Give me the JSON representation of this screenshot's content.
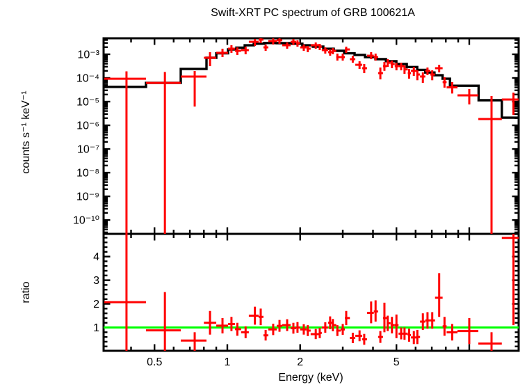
{
  "title": "Swift-XRT PC spectrum of GRB 100621A",
  "chart_data": {
    "type": "scatter",
    "xlabel": "Energy (keV)",
    "xscale": "log",
    "xlim": [
      0.308,
      16.0
    ],
    "xticks_labeled": [
      [
        0.5,
        "0.5"
      ],
      [
        1,
        "1"
      ],
      [
        2,
        "2"
      ],
      [
        5,
        "5"
      ]
    ],
    "xticks_major": [
      0.5,
      1,
      2,
      5,
      10
    ],
    "colors": {
      "data": "#ff0000",
      "model": "#000000",
      "reference": "#00ff00",
      "frame": "#000000",
      "background": "#ffffff"
    },
    "panels": [
      {
        "name": "spectrum",
        "ylabel": "counts s⁻¹ keV⁻¹",
        "yscale": "log",
        "ylim": [
          2.6e-11,
          0.00474
        ],
        "yticks": [
          [
            0.001,
            "10⁻³"
          ],
          [
            0.0001,
            "10⁻⁴"
          ],
          [
            1e-05,
            "10⁻⁵"
          ],
          [
            1e-06,
            "10⁻⁶"
          ],
          [
            1e-07,
            "10⁻⁷"
          ],
          [
            1e-08,
            "10⁻⁸"
          ],
          [
            1e-09,
            "10⁻⁹"
          ],
          [
            1e-10,
            "10⁻¹⁰"
          ]
        ],
        "legend": "red crosses: observed count rate with bin width and 1-sigma errors; black histogram: folded model",
        "data_points": [
          [
            0.383,
            0.31,
            0.461,
            9.3e-05,
            1e-11,
            0.00019
          ],
          [
            0.552,
            0.461,
            0.642,
            6.2e-05,
            1e-11,
            0.00018
          ],
          [
            0.733,
            0.642,
            0.82,
            0.000115,
            6.2e-06,
            0.000197
          ],
          [
            0.848,
            0.8,
            0.9,
            0.00071,
            0.000315,
            0.00123
          ],
          [
            0.955,
            0.9,
            1.007,
            0.00115,
            0.00076,
            0.00172
          ],
          [
            1.04,
            1.007,
            1.075,
            0.00172,
            0.00115,
            0.00241
          ],
          [
            1.1,
            1.075,
            1.14,
            0.0014,
            0.000935,
            0.00196
          ],
          [
            1.19,
            1.14,
            1.227,
            0.0015,
            0.001,
            0.0021
          ],
          [
            1.3,
            1.227,
            1.347,
            0.00337,
            0.00225,
            0.0044
          ],
          [
            1.374,
            1.347,
            1.41,
            0.00415,
            0.00295,
            0.0054
          ],
          [
            1.44,
            1.41,
            1.477,
            0.00196,
            0.0014,
            0.00258
          ],
          [
            1.547,
            1.477,
            1.6,
            0.00362,
            0.00258,
            0.0047
          ],
          [
            1.643,
            1.6,
            1.687,
            0.0039,
            0.00276,
            0.005
          ],
          [
            1.767,
            1.687,
            1.826,
            0.00241,
            0.00172,
            0.00315
          ],
          [
            1.875,
            1.826,
            1.925,
            0.00337,
            0.00241,
            0.0044
          ],
          [
            1.95,
            1.925,
            2.0,
            0.00295,
            0.0021,
            0.0039
          ],
          [
            2.07,
            2.0,
            2.125,
            0.00196,
            0.0014,
            0.00258
          ],
          [
            2.15,
            2.125,
            2.21,
            0.00172,
            0.00123,
            0.00225
          ],
          [
            2.32,
            2.21,
            2.4,
            0.00241,
            0.00172,
            0.00315
          ],
          [
            2.41,
            2.4,
            2.457,
            0.0021,
            0.0015,
            0.00276
          ],
          [
            2.54,
            2.457,
            2.61,
            0.0015,
            0.00107,
            0.00196
          ],
          [
            2.66,
            2.61,
            2.714,
            0.00123,
            0.00087,
            0.0016
          ],
          [
            2.73,
            2.714,
            2.82,
            0.0014,
            0.001,
            0.00184
          ],
          [
            2.85,
            2.82,
            2.94,
            0.00076,
            0.00054,
            0.00107
          ],
          [
            3.0,
            2.94,
            3.06,
            0.00076,
            0.00054,
            0.00107
          ],
          [
            3.1,
            3.06,
            3.21,
            0.0016,
            0.00115,
            0.0021
          ],
          [
            3.3,
            3.21,
            3.38,
            0.00062,
            0.00044,
            0.00087
          ],
          [
            3.52,
            3.38,
            3.61,
            0.00036,
            0.00024,
            0.000506
          ],
          [
            3.68,
            3.61,
            3.78,
            0.000258,
            0.00016,
            0.000387
          ],
          [
            3.93,
            3.78,
            4.03,
            0.00087,
            0.00062,
            0.00123
          ],
          [
            4.1,
            4.03,
            4.2,
            0.00076,
            0.00054,
            0.00107
          ],
          [
            4.29,
            4.2,
            4.4,
            0.00016,
            8.7e-05,
            0.000276
          ],
          [
            4.46,
            4.4,
            4.57,
            0.000315,
            0.0002,
            0.000473
          ],
          [
            4.6,
            4.57,
            4.73,
            0.00044,
            0.000295,
            0.00062
          ],
          [
            4.79,
            4.73,
            4.92,
            0.000387,
            0.000258,
            0.00054
          ],
          [
            5.0,
            4.92,
            5.1,
            0.000315,
            0.00021,
            0.00044
          ],
          [
            5.23,
            5.1,
            5.37,
            0.000315,
            0.00021,
            0.00044
          ],
          [
            5.4,
            5.37,
            5.57,
            0.00023,
            0.00015,
            0.000338
          ],
          [
            5.64,
            5.57,
            5.74,
            0.00016,
            9.35e-05,
            0.00024
          ],
          [
            5.9,
            5.74,
            6.07,
            0.0002,
            0.000122,
            0.000295
          ],
          [
            6.1,
            6.07,
            6.26,
            0.00014,
            8e-05,
            0.00021
          ],
          [
            6.43,
            6.26,
            6.58,
            0.000115,
            6.2e-05,
            0.000172
          ],
          [
            6.72,
            6.58,
            6.9,
            0.0002,
            0.000131,
            0.000276
          ],
          [
            7.03,
            6.9,
            7.22,
            0.00014,
            8e-05,
            0.00021
          ],
          [
            7.51,
            7.22,
            7.76,
            0.000258,
            0.000172,
            0.00036
          ],
          [
            7.9,
            7.76,
            8.06,
            6.66e-05,
            3.9e-05,
            0.000107
          ],
          [
            8.5,
            8.06,
            8.94,
            4e-05,
            2.2e-05,
            6.66e-05
          ],
          [
            10.0,
            8.94,
            10.9,
            1.84e-05,
            7.6e-06,
            3.4e-05
          ],
          [
            12.36,
            10.9,
            13.63,
            1.84e-06,
            1e-11,
            1.72e-05
          ],
          [
            15.23,
            13.63,
            16.5,
            1.23e-05,
            2.76e-06,
            2.4e-05
          ]
        ],
        "model": {
          "edges": [
            0.308,
            0.461,
            0.642,
            0.82,
            0.9,
            1.007,
            1.09,
            1.18,
            1.286,
            1.42,
            1.6,
            1.85,
            2.043,
            2.257,
            2.492,
            2.752,
            3.04,
            3.357,
            3.708,
            4.095,
            4.523,
            4.995,
            5.517,
            6.093,
            6.578,
            7.178,
            7.756,
            8.32,
            10.93,
            13.63,
            16.1
          ],
          "rates": [
            4.2e-05,
            6.2e-05,
            0.00024,
            0.00071,
            0.0011,
            0.0016,
            0.0019,
            0.0024,
            0.0028,
            0.003,
            0.00295,
            0.0028,
            0.0024,
            0.0021,
            0.0017,
            0.0014,
            0.0011,
            0.00094,
            0.00076,
            0.00062,
            0.00051,
            0.00039,
            0.00029,
            0.00022,
            0.00017,
            0.00013,
            9.3e-05,
            4.7e-05,
            1.15e-05,
            2.1e-06
          ]
        }
      },
      {
        "name": "ratio",
        "ylabel": "ratio",
        "yscale": "linear",
        "ylim": [
          0.015,
          4.96
        ],
        "yticks": [
          [
            1,
            "1"
          ],
          [
            2,
            "2"
          ],
          [
            3,
            "3"
          ],
          [
            4,
            "4"
          ]
        ],
        "ytick_minor_step": 0.2,
        "reference_line": {
          "value": 1,
          "color": "#00ff00"
        },
        "data_points": [
          [
            0.383,
            0.31,
            0.461,
            2.07,
            -1,
            6
          ],
          [
            0.552,
            0.461,
            0.642,
            0.88,
            -1,
            2.5
          ],
          [
            0.733,
            0.642,
            0.82,
            0.45,
            -1,
            0.8
          ],
          [
            0.848,
            0.8,
            0.9,
            1.2,
            0.7,
            1.7
          ],
          [
            0.955,
            0.9,
            1.007,
            1.08,
            0.75,
            1.4
          ],
          [
            1.04,
            1.007,
            1.075,
            1.15,
            0.85,
            1.45
          ],
          [
            1.1,
            1.075,
            1.14,
            0.93,
            0.65,
            1.2
          ],
          [
            1.19,
            1.14,
            1.227,
            0.8,
            0.55,
            1.05
          ],
          [
            1.3,
            1.227,
            1.347,
            1.5,
            1.12,
            1.88
          ],
          [
            1.374,
            1.347,
            1.41,
            1.45,
            1.1,
            1.8
          ],
          [
            1.44,
            1.41,
            1.477,
            0.67,
            0.45,
            0.9
          ],
          [
            1.547,
            1.477,
            1.6,
            0.92,
            0.68,
            1.16
          ],
          [
            1.643,
            1.6,
            1.687,
            1.07,
            0.82,
            1.32
          ],
          [
            1.767,
            1.687,
            1.826,
            1.1,
            0.85,
            1.35
          ],
          [
            1.875,
            1.826,
            1.925,
            0.97,
            0.74,
            1.2
          ],
          [
            1.95,
            1.925,
            2.0,
            1.0,
            0.78,
            1.23
          ],
          [
            2.07,
            2.0,
            2.125,
            0.92,
            0.7,
            1.14
          ],
          [
            2.15,
            2.125,
            2.21,
            0.87,
            0.64,
            1.1
          ],
          [
            2.32,
            2.21,
            2.4,
            0.72,
            0.51,
            0.94
          ],
          [
            2.41,
            2.4,
            2.457,
            0.77,
            0.55,
            0.99
          ],
          [
            2.54,
            2.457,
            2.61,
            1.0,
            0.78,
            1.22
          ],
          [
            2.66,
            2.61,
            2.714,
            1.2,
            0.93,
            1.47
          ],
          [
            2.73,
            2.714,
            2.82,
            1.1,
            0.84,
            1.36
          ],
          [
            2.85,
            2.82,
            2.94,
            0.87,
            0.64,
            1.1
          ],
          [
            3.0,
            2.94,
            3.06,
            0.92,
            0.69,
            1.15
          ],
          [
            3.1,
            3.06,
            3.21,
            1.4,
            1.1,
            1.7
          ],
          [
            3.3,
            3.21,
            3.38,
            0.56,
            0.34,
            0.78
          ],
          [
            3.52,
            3.38,
            3.61,
            0.65,
            0.42,
            0.88
          ],
          [
            3.68,
            3.61,
            3.78,
            0.5,
            0.27,
            0.73
          ],
          [
            3.93,
            3.78,
            4.03,
            1.62,
            1.18,
            2.1
          ],
          [
            4.1,
            4.03,
            4.2,
            1.68,
            1.25,
            2.15
          ],
          [
            4.29,
            4.2,
            4.4,
            0.6,
            0.35,
            0.85
          ],
          [
            4.46,
            4.4,
            4.57,
            1.4,
            0.8,
            2.05
          ],
          [
            4.6,
            4.57,
            4.73,
            1.18,
            0.85,
            1.5
          ],
          [
            4.79,
            4.73,
            4.92,
            1.1,
            0.75,
            1.45
          ],
          [
            5.0,
            4.92,
            5.1,
            1.1,
            0.55,
            1.55
          ],
          [
            5.23,
            5.1,
            5.37,
            0.74,
            0.5,
            1.0
          ],
          [
            5.4,
            5.37,
            5.57,
            0.74,
            0.48,
            1.0
          ],
          [
            5.64,
            5.57,
            5.74,
            0.68,
            0.4,
            0.95
          ],
          [
            5.9,
            5.74,
            6.07,
            0.58,
            0.3,
            0.85
          ],
          [
            6.1,
            6.07,
            6.26,
            0.6,
            0.3,
            0.9
          ],
          [
            6.43,
            6.26,
            6.58,
            1.25,
            0.9,
            1.6
          ],
          [
            6.72,
            6.58,
            6.9,
            1.3,
            0.95,
            1.65
          ],
          [
            7.03,
            6.9,
            7.22,
            1.3,
            0.95,
            1.65
          ],
          [
            7.51,
            7.22,
            7.76,
            2.26,
            1.45,
            3.3
          ],
          [
            7.9,
            7.76,
            8.06,
            1.05,
            0.65,
            1.45
          ],
          [
            8.5,
            8.06,
            8.94,
            0.8,
            0.45,
            1.15
          ],
          [
            10.0,
            8.94,
            10.9,
            0.85,
            0.3,
            1.4
          ],
          [
            12.36,
            10.9,
            13.63,
            0.32,
            -1,
            0.8
          ],
          [
            15.23,
            13.63,
            16.5,
            4.79,
            1.1,
            6
          ]
        ]
      }
    ]
  }
}
